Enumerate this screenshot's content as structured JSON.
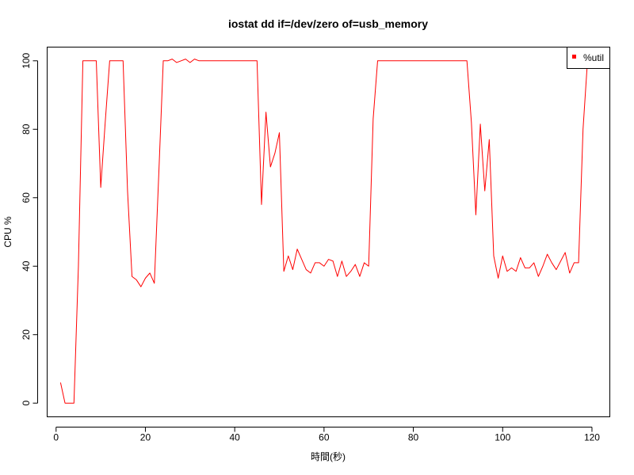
{
  "chart_data": {
    "type": "line",
    "title": "iostat dd if=/dev/zero of=usb_memory",
    "xlabel": "時間(秒)",
    "ylabel": "CPU %",
    "xlim": [
      -2,
      124
    ],
    "ylim": [
      -4,
      104
    ],
    "xticks": [
      0,
      20,
      40,
      60,
      80,
      100,
      120
    ],
    "yticks": [
      0,
      20,
      40,
      60,
      80,
      100
    ],
    "grid": false,
    "legend": {
      "position": "top-right"
    },
    "series": [
      {
        "name": "%util",
        "color": "#ff0000",
        "x": [
          1,
          2,
          3,
          4,
          5,
          6,
          7,
          8,
          9,
          10,
          11,
          12,
          13,
          14,
          15,
          16,
          17,
          18,
          19,
          20,
          21,
          22,
          23,
          24,
          25,
          26,
          27,
          28,
          29,
          30,
          31,
          32,
          33,
          34,
          35,
          36,
          37,
          38,
          39,
          40,
          41,
          42,
          43,
          44,
          45,
          46,
          47,
          48,
          49,
          50,
          51,
          52,
          53,
          54,
          55,
          56,
          57,
          58,
          59,
          60,
          61,
          62,
          63,
          64,
          65,
          66,
          67,
          68,
          69,
          70,
          71,
          72,
          73,
          74,
          75,
          76,
          77,
          78,
          79,
          80,
          81,
          82,
          83,
          84,
          85,
          86,
          87,
          88,
          89,
          90,
          91,
          92,
          93,
          94,
          95,
          96,
          97,
          98,
          99,
          100,
          101,
          102,
          103,
          104,
          105,
          106,
          107,
          108,
          109,
          110,
          111,
          112,
          113,
          114,
          115,
          116,
          117,
          118,
          119
        ],
        "y": [
          6,
          0,
          0,
          0,
          40,
          100,
          100,
          100,
          100,
          63,
          82,
          100,
          100,
          100,
          100,
          62,
          37,
          36,
          34,
          36.5,
          38,
          35,
          67,
          100,
          100,
          100.5,
          99.5,
          100,
          100.5,
          99.5,
          100.5,
          100,
          100,
          100,
          100,
          100,
          100,
          100,
          100,
          100,
          100,
          100,
          100,
          100,
          100,
          58,
          85,
          69,
          73,
          79,
          38.5,
          43,
          39,
          45,
          42,
          39,
          38,
          41,
          41,
          40,
          42,
          41.5,
          37,
          41.5,
          37,
          38.5,
          40.5,
          37,
          41,
          40,
          83,
          100,
          100,
          100,
          100,
          100,
          100,
          100,
          100,
          100,
          100,
          100,
          100,
          100,
          100,
          100,
          100,
          100,
          100,
          100,
          100,
          100,
          82,
          55,
          81.5,
          62,
          77,
          43,
          36.5,
          43,
          38.5,
          39.5,
          38.5,
          42.5,
          39.5,
          39.5,
          41,
          37,
          40,
          43.5,
          41,
          39,
          41.5,
          44,
          38,
          41,
          41,
          80,
          100
        ]
      }
    ]
  }
}
